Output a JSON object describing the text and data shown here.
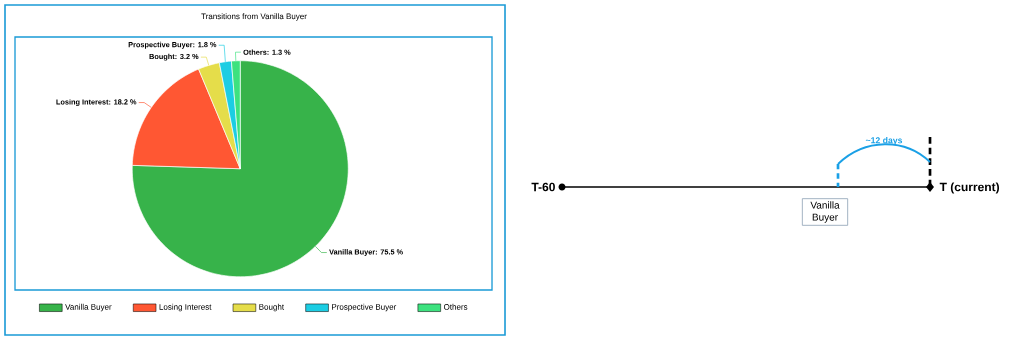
{
  "chart_data": [
    {
      "type": "pie",
      "title": "Transitions from Vanilla Buyer",
      "categories": [
        "Vanilla Buyer",
        "Losing Interest",
        "Bought",
        "Prospective Buyer",
        "Others"
      ],
      "values": [
        75.5,
        18.2,
        3.2,
        1.8,
        1.3
      ],
      "colors": [
        "#37b34a",
        "#ff5733",
        "#e5dd4a",
        "#1ccde3",
        "#3de27f"
      ],
      "value_labels": [
        "Vanilla Buyer: 75.5 %",
        "Losing Interest: 18.2 %",
        "Bought: 3.2 %",
        "Prospective Buyer: 1.8 %",
        "Others: 1.3 %"
      ],
      "legend": "bottom"
    },
    {
      "type": "other",
      "annotations": [
        "T-60",
        "T (current)",
        "~12 days",
        "Vanilla Buyer"
      ]
    }
  ]
}
